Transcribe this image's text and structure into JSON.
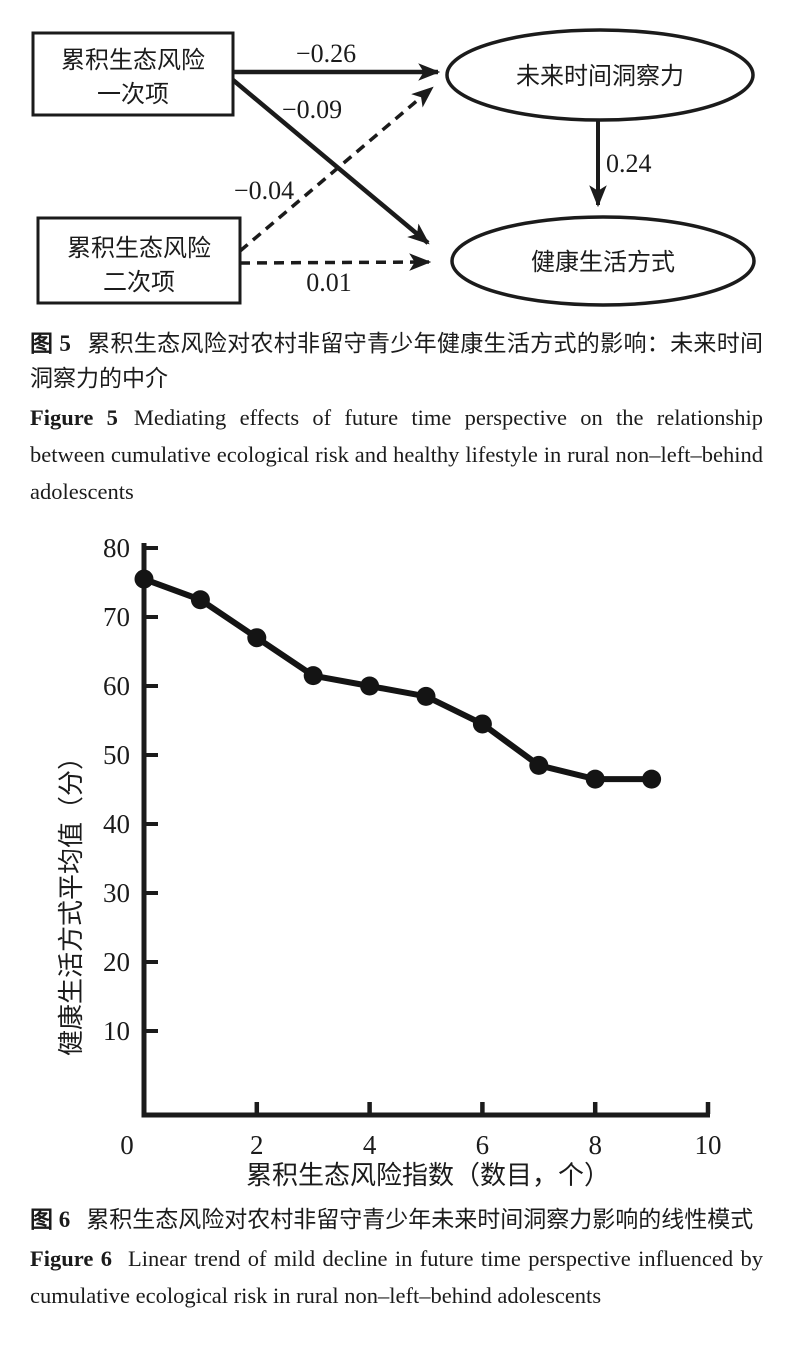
{
  "figure5": {
    "boxes": [
      {
        "id": "risk_linear",
        "lines": [
          "累积生态风险",
          "一次项"
        ]
      },
      {
        "id": "risk_quadratic",
        "lines": [
          "累积生态风险",
          "二次项"
        ]
      }
    ],
    "ellipses": [
      {
        "id": "future_time_perspective",
        "label": "未来时间洞察力"
      },
      {
        "id": "healthy_lifestyle",
        "label": "健康生活方式"
      }
    ],
    "paths": [
      {
        "from": "risk_linear",
        "to": "future_time_perspective",
        "coef": "−0.26",
        "style": "solid"
      },
      {
        "from": "risk_linear",
        "to": "healthy_lifestyle",
        "coef": "−0.09",
        "style": "solid"
      },
      {
        "from": "risk_quadratic",
        "to": "future_time_perspective",
        "coef": "−0.04",
        "style": "dashed"
      },
      {
        "from": "risk_quadratic",
        "to": "healthy_lifestyle",
        "coef": "0.01",
        "style": "dashed"
      },
      {
        "from": "future_time_perspective",
        "to": "healthy_lifestyle",
        "coef": "0.24",
        "style": "solid"
      }
    ],
    "caption_zh_bold": "图 5",
    "caption_zh": "累积生态风险对农村非留守青少年健康生活方式的影响：未来时间洞察力的中介",
    "caption_en_bold": "Figure 5",
    "caption_en": "Mediating effects of future time perspective on the relationship between cumulative ecological risk and healthy lifestyle in rural non–left–behind adolescents"
  },
  "figure6": {
    "caption_zh_bold": "图 6",
    "caption_zh": "累积生态风险对农村非留守青少年未来时间洞察力影响的线性模式",
    "caption_en_bold": "Figure 6",
    "caption_en": "Linear trend of mild decline in future time perspective influenced by cumulative ecological risk in rural non–left–behind adolescents"
  },
  "chart_data": {
    "type": "line",
    "x": [
      0,
      1,
      2,
      3,
      4,
      5,
      6,
      7,
      8,
      9
    ],
    "y": [
      75.5,
      72.5,
      67,
      61.5,
      60,
      58.5,
      54.5,
      48.5,
      46.5,
      46.5
    ],
    "xlabel": "累积生态风险指数（数目，个）",
    "ylabel": "健康生活方式平均值（分）",
    "xlim": [
      0,
      10
    ],
    "ylim": [
      0,
      80
    ],
    "x_ticks": [
      0,
      2,
      4,
      6,
      8,
      10
    ],
    "y_ticks": [
      10,
      20,
      30,
      40,
      50,
      60,
      70,
      80
    ],
    "marker": "filled-circle",
    "line_color": "#141414",
    "grid": false,
    "legend": null
  }
}
